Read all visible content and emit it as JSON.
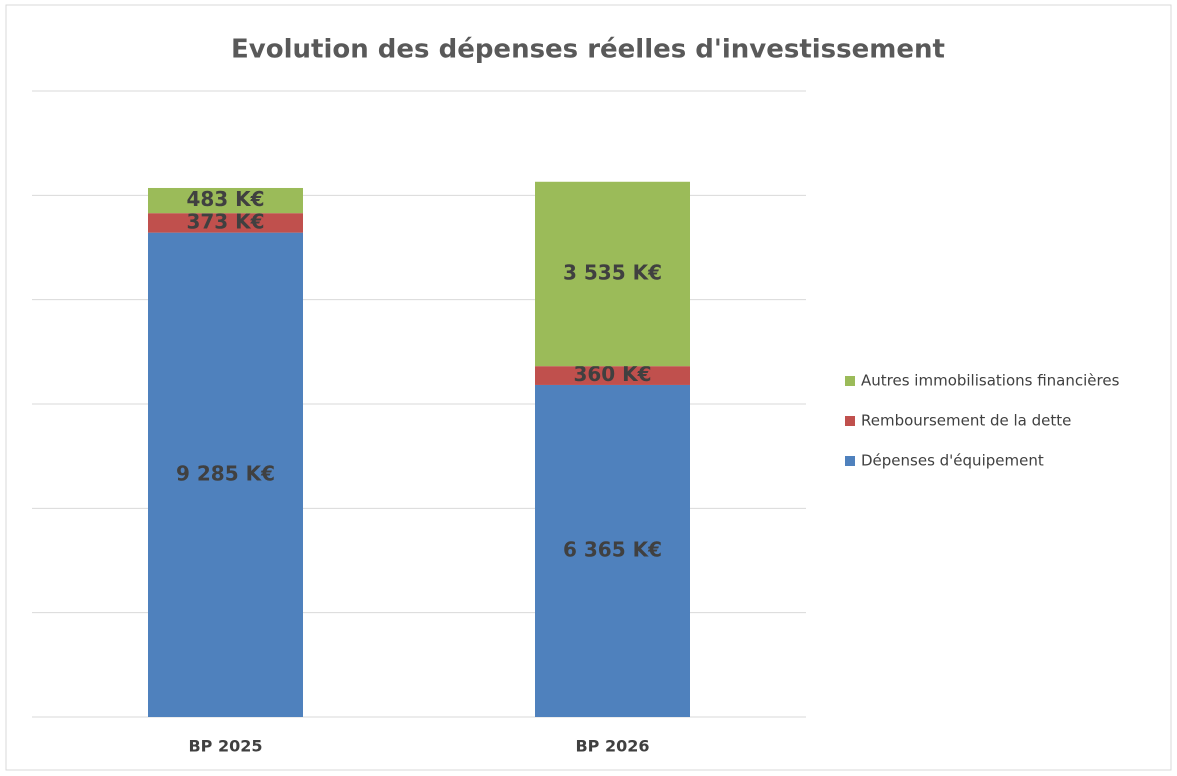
{
  "chart_data": {
    "type": "stacked_bar",
    "title": "Evolution des dépenses réelles d'investissement",
    "categories": [
      "BP 2025",
      "BP 2026"
    ],
    "series": [
      {
        "name": "Dépenses d'équipement",
        "color": "#4f81bd",
        "values": [
          9285,
          6365
        ],
        "value_labels": [
          "9 285 K€",
          "6 365 K€"
        ]
      },
      {
        "name": "Remboursement de la dette",
        "color": "#c0504d",
        "values": [
          373,
          360
        ],
        "value_labels": [
          "373 K€",
          "360 K€"
        ]
      },
      {
        "name": "Autres immobilisations financières",
        "color": "#9bbb59",
        "values": [
          483,
          3535
        ],
        "value_labels": [
          "483 K€",
          "3 535 K€"
        ]
      }
    ],
    "ylim": [
      0,
      12000
    ],
    "yticks": [
      0,
      2000,
      4000,
      6000,
      8000,
      10000,
      12000
    ],
    "grid": true,
    "legend": "right"
  }
}
